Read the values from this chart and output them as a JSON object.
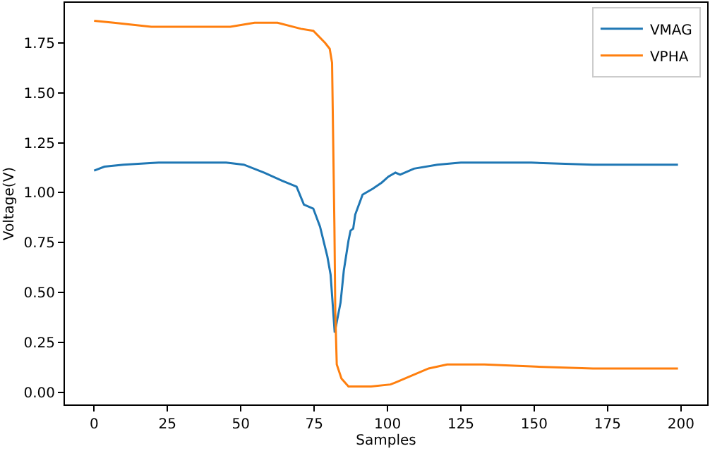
{
  "chart_data": {
    "type": "line",
    "xlabel": "Samples",
    "ylabel": "Voltage(V)",
    "xlim": [
      -9.95,
      208.95
    ],
    "ylim": [
      -0.06,
      1.95
    ],
    "xticks": [
      0,
      25,
      50,
      75,
      100,
      125,
      150,
      175,
      200
    ],
    "yticks": [
      {
        "value": 0,
        "label": "0.00"
      },
      {
        "value": 0.25,
        "label": "0.25"
      },
      {
        "value": 0.5,
        "label": "0.50"
      },
      {
        "value": 0.75,
        "label": "0.75"
      },
      {
        "value": 1,
        "label": "1.00"
      },
      {
        "value": 1.25,
        "label": "1.25"
      },
      {
        "value": 1.5,
        "label": "1.50"
      },
      {
        "value": 1.75,
        "label": "1.75"
      }
    ],
    "legend": "top right",
    "series": [
      {
        "name": "VMAG",
        "color": "#1f77b4",
        "x": [
          0,
          3.5,
          10,
          22,
          35,
          45,
          51,
          58,
          64,
          69,
          71.5,
          74.7,
          77,
          79.5,
          80.6,
          82,
          84,
          85.1,
          86.7,
          87.4,
          88.3,
          89,
          91.5,
          95,
          98,
          100.3,
          102.7,
          104.3,
          107.5,
          109,
          117,
          125,
          133,
          149,
          170,
          199
        ],
        "values": [
          1.11,
          1.13,
          1.14,
          1.15,
          1.15,
          1.15,
          1.14,
          1.1,
          1.06,
          1.03,
          0.94,
          0.92,
          0.83,
          0.68,
          0.59,
          0.3,
          0.45,
          0.61,
          0.76,
          0.81,
          0.82,
          0.89,
          0.99,
          1.02,
          1.05,
          1.08,
          1.1,
          1.09,
          1.11,
          1.12,
          1.14,
          1.15,
          1.15,
          1.15,
          1.14,
          1.14
        ]
      },
      {
        "name": "VPHA",
        "color": "#ff7f0e",
        "x": [
          0,
          6.7,
          19.5,
          30.7,
          46.4,
          54.7,
          62.5,
          70.5,
          74.7,
          78.7,
          80.3,
          81.1,
          81.9,
          82.2,
          82.7,
          84.3,
          86.7,
          94.4,
          101,
          102.7,
          107.5,
          114,
          120.3,
          133,
          149,
          170,
          199
        ],
        "values": [
          1.86,
          1.85,
          1.83,
          1.83,
          1.83,
          1.85,
          1.85,
          1.82,
          1.81,
          1.75,
          1.72,
          1.65,
          0.83,
          0.4,
          0.14,
          0.07,
          0.03,
          0.03,
          0.04,
          0.05,
          0.08,
          0.12,
          0.14,
          0.14,
          0.13,
          0.12,
          0.12
        ]
      }
    ]
  }
}
